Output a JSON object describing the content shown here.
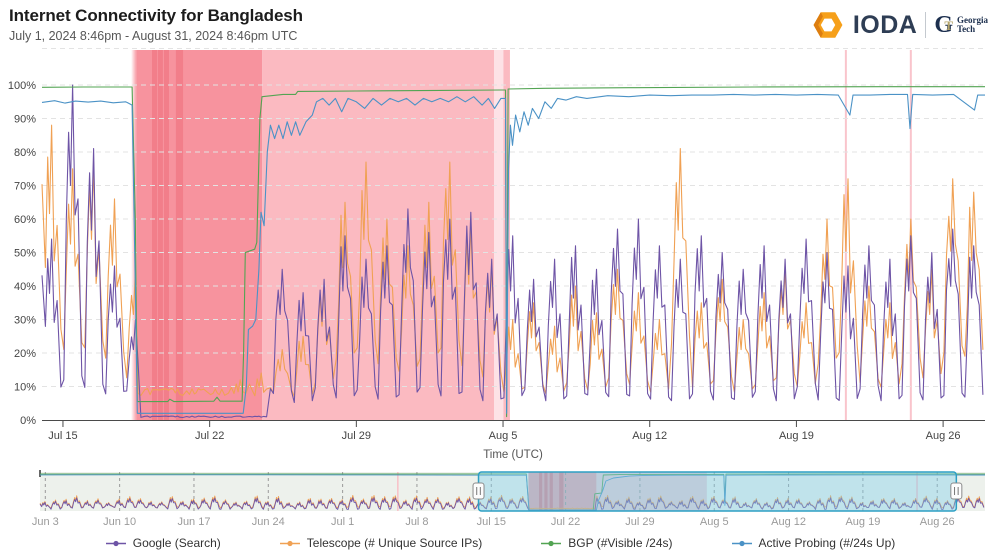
{
  "header": {
    "title": "Internet Connectivity for Bangladesh",
    "subtitle": "July 1, 2024 8:46pm - August 31, 2024 8:46pm UTC",
    "brand": {
      "name": "IODA",
      "gt_mark_g": "G",
      "gt_mark_t": "T",
      "partner_line1": "Georgia",
      "partner_line2": "Tech"
    }
  },
  "colors": {
    "google": "#6e54a6",
    "telescope": "#f0a154",
    "bgp": "#53a453",
    "probing": "#4b92c6",
    "outage_dark": "#f7939e",
    "outage_medium": "#fbbac1",
    "outage_xlight": "#fde2e6",
    "outage_stripe": "rgba(233,78,94,0.30)",
    "event_line": "rgba(248,186,195,0.85)",
    "brush_bg": "#edf1ec",
    "brush_band1": "rgba(222,92,110,0.50)",
    "brush_band2": "rgba(215,120,150,0.30)",
    "brush_stripe": "rgba(200,60,80,0.35)",
    "selection_fill": "rgba(125,208,235,0.40)",
    "selection_stroke": "#2d9fc4"
  },
  "legend": {
    "items": [
      {
        "label": "Google (Search)",
        "color_key": "google"
      },
      {
        "label": "Telescope (# Unique Source IPs)",
        "color_key": "telescope"
      },
      {
        "label": "BGP (#Visible /24s)",
        "color_key": "bgp"
      },
      {
        "label": "Active Probing (#/24s Up)",
        "color_key": "probing"
      }
    ]
  },
  "chart_data": [
    {
      "id": "main",
      "type": "line",
      "xlabel": "Time (UTC)",
      "x_start": "2024-07-14T00:00Z",
      "x_days": 45,
      "ylim": [
        0,
        110
      ],
      "grid": "dashed-horizontal",
      "y_ticks": [
        {
          "label": "0%",
          "v": 0
        },
        {
          "label": "10%",
          "v": 10
        },
        {
          "label": "20%",
          "v": 20
        },
        {
          "label": "30%",
          "v": 30
        },
        {
          "label": "40%",
          "v": 40
        },
        {
          "label": "50%",
          "v": 50
        },
        {
          "label": "60%",
          "v": 60
        },
        {
          "label": "70%",
          "v": 70
        },
        {
          "label": "80%",
          "v": 80
        },
        {
          "label": "90%",
          "v": 90
        },
        {
          "label": "100%",
          "v": 100
        }
      ],
      "x_ticks": [
        {
          "label": "Jul 15",
          "day": 1
        },
        {
          "label": "Jul 22",
          "day": 8
        },
        {
          "label": "Jul 29",
          "day": 15
        },
        {
          "label": "Aug 5",
          "day": 22
        },
        {
          "label": "Aug 12",
          "day": 29
        },
        {
          "label": "Aug 19",
          "day": 36
        },
        {
          "label": "Aug 26",
          "day": 43
        }
      ],
      "outage_bands": {
        "fade": {
          "from": 4.25,
          "to": 4.53
        },
        "dark": {
          "from": 4.53,
          "to": 10.5
        },
        "medium": {
          "from": 10.5,
          "to": 21.57
        },
        "xlight": {
          "from": 21.57,
          "to": 22.02
        },
        "medium2": {
          "from": 22.02,
          "to": 22.33
        },
        "stripes": [
          [
            5.25,
            5.49
          ],
          [
            5.53,
            5.77
          ],
          [
            5.82,
            6.06
          ],
          [
            6.39,
            6.73
          ]
        ],
        "event_lines": [
          38.36,
          41.46
        ]
      },
      "series": [
        {
          "name": "Telescope (# Unique Source IPs)",
          "color_key": "telescope",
          "kind": "daily",
          "trough_base": 5,
          "trough_var": 5,
          "trough_scale": 0.28,
          "flat": {
            "from": 4.55,
            "to": 9.0,
            "value": 7,
            "jitter": 2.5
          },
          "daily_peaks": [
            88,
            75,
            77,
            66,
            45,
            9,
            8,
            10,
            9,
            12,
            14,
            21,
            25,
            40,
            65,
            77,
            60,
            52,
            65,
            77,
            58,
            46,
            30,
            35,
            28,
            40,
            32,
            45,
            38,
            30,
            81,
            35,
            42,
            30,
            38,
            45,
            35,
            60,
            72,
            40,
            35,
            60,
            45,
            72,
            68
          ]
        },
        {
          "name": "Google (Search)",
          "color_key": "google",
          "kind": "daily",
          "trough_base": 4,
          "trough_var": 6,
          "trough_scale": 0.12,
          "flat": {
            "from": 4.58,
            "to": 10.85,
            "value": 0.7,
            "jitter": 0.5
          },
          "daily_peaks": [
            54,
            100,
            81,
            46,
            30,
            1,
            1,
            1,
            1,
            1,
            1,
            45,
            38,
            42,
            55,
            48,
            52,
            63,
            56,
            60,
            62,
            48,
            55,
            42,
            48,
            52,
            45,
            57,
            60,
            52,
            48,
            55,
            50,
            45,
            52,
            48,
            54,
            50,
            46,
            52,
            48,
            55,
            50,
            57,
            52
          ]
        },
        {
          "name": "BGP (#Visible /24s)",
          "color_key": "bgp",
          "kind": "points",
          "points": [
            [
              0,
              99.3
            ],
            [
              2,
              99.4
            ],
            [
              4.3,
              99.4
            ],
            [
              4.45,
              60
            ],
            [
              4.55,
              5.5
            ],
            [
              6,
              5.5
            ],
            [
              6.1,
              6.2
            ],
            [
              6.3,
              5.5
            ],
            [
              8.2,
              5.6
            ],
            [
              8.35,
              6.8
            ],
            [
              8.5,
              5.6
            ],
            [
              9.55,
              5.6
            ],
            [
              9.62,
              20
            ],
            [
              9.7,
              50
            ],
            [
              10.15,
              51
            ],
            [
              10.25,
              53
            ],
            [
              10.4,
              90
            ],
            [
              10.5,
              96.5
            ],
            [
              11.5,
              97.2
            ],
            [
              12.1,
              97.2
            ],
            [
              12.2,
              98.1
            ],
            [
              15,
              98.2
            ],
            [
              19,
              98.4
            ],
            [
              21.9,
              98.5
            ],
            [
              22.12,
              98.5
            ],
            [
              22.17,
              1
            ],
            [
              22.24,
              98.8
            ],
            [
              24,
              99
            ],
            [
              28,
              99.2
            ],
            [
              34,
              99.4
            ],
            [
              40,
              99.5
            ],
            [
              45,
              99.5
            ]
          ]
        },
        {
          "name": "Active Probing (#/24s Up)",
          "color_key": "probing",
          "kind": "points",
          "points": [
            [
              0,
              94.8
            ],
            [
              0.6,
              95.3
            ],
            [
              1.1,
              94.6
            ],
            [
              1.6,
              95.2
            ],
            [
              2.2,
              94.9
            ],
            [
              2.8,
              95.2
            ],
            [
              3.4,
              94.7
            ],
            [
              4,
              95
            ],
            [
              4.3,
              94
            ],
            [
              4.45,
              40
            ],
            [
              4.55,
              2
            ],
            [
              9.6,
              2
            ],
            [
              9.75,
              10
            ],
            [
              9.85,
              27
            ],
            [
              10.05,
              28
            ],
            [
              10.2,
              30
            ],
            [
              10.35,
              45
            ],
            [
              10.45,
              62
            ],
            [
              10.6,
              58
            ],
            [
              10.75,
              80
            ],
            [
              10.9,
              88
            ],
            [
              11.1,
              84
            ],
            [
              11.3,
              88
            ],
            [
              11.5,
              84
            ],
            [
              11.7,
              89
            ],
            [
              11.9,
              85
            ],
            [
              12.1,
              89
            ],
            [
              12.3,
              85
            ],
            [
              12.6,
              89
            ],
            [
              12.9,
              91
            ],
            [
              13.1,
              95
            ],
            [
              13.4,
              96
            ],
            [
              13.7,
              94
            ],
            [
              14,
              96
            ],
            [
              14.3,
              92
            ],
            [
              14.6,
              96
            ],
            [
              15,
              95
            ],
            [
              15.4,
              93
            ],
            [
              15.8,
              96
            ],
            [
              16.2,
              94
            ],
            [
              16.6,
              96
            ],
            [
              17,
              95
            ],
            [
              17.4,
              96
            ],
            [
              17.8,
              94
            ],
            [
              18.2,
              96
            ],
            [
              18.6,
              95
            ],
            [
              19,
              96
            ],
            [
              19.4,
              95
            ],
            [
              19.8,
              96.5
            ],
            [
              20.2,
              95
            ],
            [
              20.6,
              96.5
            ],
            [
              21,
              94
            ],
            [
              21.3,
              96
            ],
            [
              21.6,
              93
            ],
            [
              21.9,
              96
            ],
            [
              22.12,
              96
            ],
            [
              22.17,
              2
            ],
            [
              22.26,
              75
            ],
            [
              22.35,
              88
            ],
            [
              22.45,
              82
            ],
            [
              22.6,
              91
            ],
            [
              22.8,
              86
            ],
            [
              23,
              92
            ],
            [
              23.2,
              88
            ],
            [
              23.4,
              93
            ],
            [
              23.7,
              90
            ],
            [
              24,
              95
            ],
            [
              24.3,
              93
            ],
            [
              24.6,
              96
            ],
            [
              25,
              95.5
            ],
            [
              25.5,
              96.5
            ],
            [
              26,
              96
            ],
            [
              27,
              96.8
            ],
            [
              28,
              96.5
            ],
            [
              29,
              97
            ],
            [
              30,
              96.8
            ],
            [
              31,
              97
            ],
            [
              32,
              97
            ],
            [
              33,
              97.2
            ],
            [
              34,
              97
            ],
            [
              35,
              97.2
            ],
            [
              36,
              97
            ],
            [
              37,
              97.2
            ],
            [
              38,
              97
            ],
            [
              38.55,
              91
            ],
            [
              38.7,
              97
            ],
            [
              39.5,
              97
            ],
            [
              40.5,
              97.2
            ],
            [
              41.3,
              97.2
            ],
            [
              41.42,
              87
            ],
            [
              41.55,
              97.2
            ],
            [
              42.5,
              97
            ],
            [
              43.5,
              97.2
            ],
            [
              44.5,
              92.5
            ],
            [
              44.65,
              97
            ],
            [
              45,
              97
            ]
          ]
        }
      ]
    },
    {
      "id": "brush",
      "type": "line",
      "x_start": "2024-06-02T12:00Z",
      "x_days": 89,
      "ylim": [
        0,
        105
      ],
      "selection": {
        "from_day": 41.3,
        "to_day": 86.3
      },
      "x_ticks": [
        {
          "label": "Jun 3",
          "day": 0.5
        },
        {
          "label": "Jun 10",
          "day": 7.5
        },
        {
          "label": "Jun 17",
          "day": 14.5
        },
        {
          "label": "Jun 24",
          "day": 21.5
        },
        {
          "label": "Jul 1",
          "day": 28.5
        },
        {
          "label": "Jul 8",
          "day": 35.5
        },
        {
          "label": "Jul 15",
          "day": 42.5
        },
        {
          "label": "Jul 22",
          "day": 49.5
        },
        {
          "label": "Jul 29",
          "day": 56.5
        },
        {
          "label": "Aug 5",
          "day": 63.5
        },
        {
          "label": "Aug 12",
          "day": 70.5
        },
        {
          "label": "Aug 19",
          "day": 77.5
        },
        {
          "label": "Aug 26",
          "day": 84.5
        }
      ],
      "outage_bands": {
        "dark": {
          "from": 46.0,
          "to": 52.4
        },
        "medium": {
          "from": 52.4,
          "to": 62.8
        },
        "stripes": [
          [
            47.0,
            47.3
          ],
          [
            47.5,
            47.8
          ],
          [
            48.0,
            48.3
          ],
          [
            48.9,
            49.3
          ]
        ],
        "event_lines": [
          33.7,
          82.6
        ]
      },
      "series": [
        {
          "name": "Telescope (# Unique Source IPs)",
          "color_key": "telescope",
          "kind": "daily",
          "trough_base": 5,
          "trough_var": 5,
          "trough_scale": 0.28,
          "flat": {
            "from": 46.0,
            "to": 52.3,
            "value": 6,
            "jitter": 2
          },
          "synth": {
            "days": 89,
            "base": 22,
            "variance": 20
          }
        },
        {
          "name": "Google (Search)",
          "color_key": "google",
          "kind": "daily",
          "trough_base": 4,
          "trough_var": 6,
          "trough_scale": 0.12,
          "flat": {
            "from": 46.0,
            "to": 52.3,
            "value": 1.5,
            "jitter": 0.8
          },
          "synth": {
            "days": 89,
            "base": 20,
            "variance": 16
          }
        },
        {
          "name": "BGP (#Visible /24s)",
          "color_key": "bgp",
          "kind": "points",
          "points": [
            [
              0,
              99
            ],
            [
              20,
              99
            ],
            [
              45.8,
              99
            ],
            [
              46.05,
              3
            ],
            [
              52.1,
              3
            ],
            [
              52.25,
              46
            ],
            [
              52.9,
              48
            ],
            [
              53.05,
              96
            ],
            [
              55,
              97.5
            ],
            [
              64.4,
              98
            ],
            [
              64.5,
              30
            ],
            [
              64.6,
              98.5
            ],
            [
              75,
              99
            ],
            [
              89,
              99
            ]
          ]
        },
        {
          "name": "Active Probing (#/24s Up)",
          "color_key": "probing",
          "kind": "points",
          "points": [
            [
              0,
              96.3
            ],
            [
              10,
              96.5
            ],
            [
              30,
              96.2
            ],
            [
              45.8,
              95.5
            ],
            [
              46.05,
              2.5
            ],
            [
              52.4,
              2.5
            ],
            [
              52.6,
              28
            ],
            [
              53,
              55
            ],
            [
              53.3,
              80
            ],
            [
              54,
              88
            ],
            [
              55.5,
              93
            ],
            [
              57,
              95
            ],
            [
              60,
              95.5
            ],
            [
              64.4,
              95.5
            ],
            [
              64.5,
              15
            ],
            [
              64.62,
              95.5
            ],
            [
              70,
              96
            ],
            [
              80,
              96.2
            ],
            [
              89,
              96
            ]
          ]
        }
      ]
    }
  ]
}
